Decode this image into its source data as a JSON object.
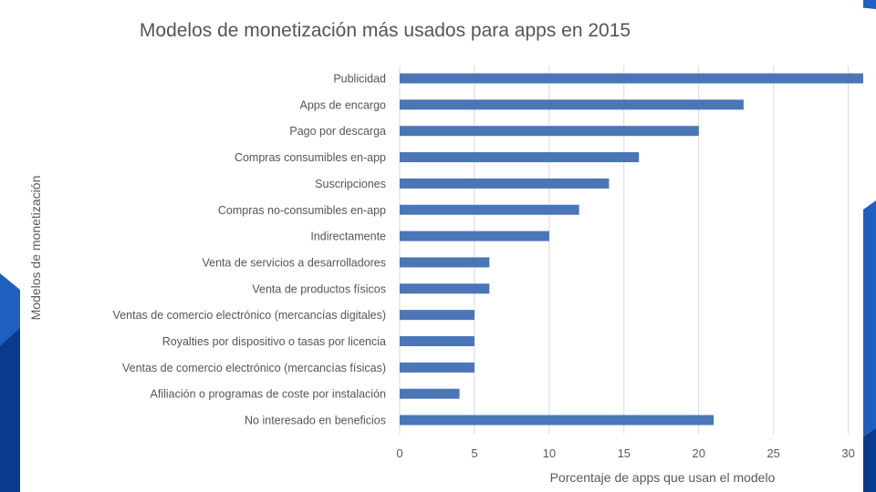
{
  "slide": {
    "accent_color": "#1f5fbf",
    "dark_accent": "#0a3a8c"
  },
  "chart_data": {
    "type": "bar",
    "orientation": "horizontal",
    "title": "Modelos de monetización más usados para apps en 2015",
    "xlabel": "Porcentaje de apps que usan el modelo",
    "ylabel": "Modelos de monetización",
    "categories": [
      "Publicidad",
      "Apps de encargo",
      "Pago por descarga",
      "Compras consumibles en-app",
      "Suscripciones",
      "Compras no-consumibles en-app",
      "Indirectamente",
      "Venta de servicios a desarrolladores",
      "Venta de productos físicos",
      "Ventas de comercio electrónico (mercancías digitales)",
      "Royalties por dispositivo o tasas por licencia",
      "Ventas de comercio electrónico (mercancías físicas)",
      "Afiliación o programas de coste por instalación",
      "No interesado en beneficios"
    ],
    "values": [
      31,
      23,
      20,
      16,
      14,
      12,
      10,
      6,
      6,
      5,
      5,
      5,
      4,
      21
    ],
    "xlim": [
      0,
      31
    ],
    "xticks": [
      0,
      5,
      10,
      15,
      20,
      25,
      30
    ],
    "grid": true,
    "bar_color": "#4a76b8"
  }
}
